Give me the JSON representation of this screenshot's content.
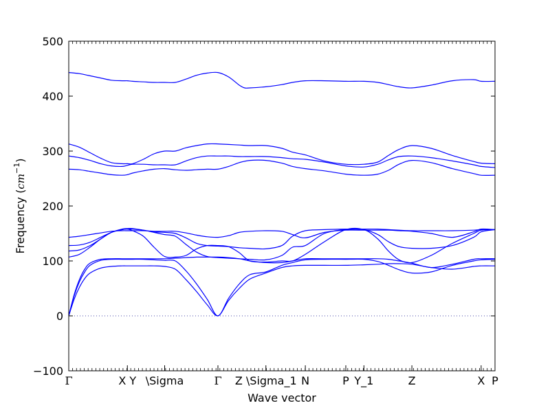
{
  "chart_data": {
    "type": "line",
    "title": "",
    "xlabel": "Wave vector",
    "ylabel": "Frequency",
    "ylabel_unit": "cm",
    "ylabel_exp": "−1",
    "ylim": [
      -100,
      500
    ],
    "yticks": [
      -100,
      0,
      100,
      200,
      300,
      400,
      500
    ],
    "xlim": [
      0,
      4.0
    ],
    "grid": false,
    "legend": "none",
    "color": "#0000ff",
    "zero_line_color": "#4444aa",
    "xticks": [
      {
        "x": 0.0,
        "label": "Γ"
      },
      {
        "x": 0.55,
        "label": "X Y"
      },
      {
        "x": 0.9,
        "label": "\\Sigma"
      },
      {
        "x": 1.4,
        "label": "Γ"
      },
      {
        "x": 1.85,
        "label": "Z \\Sigma_1"
      },
      {
        "x": 2.22,
        "label": "N"
      },
      {
        "x": 2.6,
        "label": "P"
      },
      {
        "x": 2.77,
        "label": "Y_1"
      },
      {
        "x": 3.22,
        "label": "Z"
      },
      {
        "x": 3.87,
        "label": "X"
      },
      {
        "x": 4.0,
        "label": "P"
      }
    ],
    "series": [
      {
        "x": [
          0,
          0.1,
          0.2,
          0.3,
          0.4,
          0.5,
          0.55,
          0.6,
          0.7,
          0.8,
          0.9,
          1.0,
          1.1,
          1.2,
          1.3,
          1.4,
          1.5,
          1.6,
          1.65,
          1.7,
          1.85,
          2.0,
          2.1,
          2.22,
          2.4,
          2.6,
          2.77,
          2.9,
          3.0,
          3.1,
          3.22,
          3.4,
          3.6,
          3.8,
          3.87,
          4.0
        ],
        "y": [
          443,
          441,
          437,
          433,
          429,
          428,
          428,
          427,
          426,
          425,
          425,
          425,
          431,
          438,
          442,
          443,
          435,
          420,
          415,
          415,
          417,
          421,
          425,
          428,
          428,
          427,
          427,
          425,
          421,
          417,
          415,
          420,
          428,
          430,
          427,
          427
        ]
      },
      {
        "x": [
          0,
          0.1,
          0.2,
          0.3,
          0.4,
          0.5,
          0.55,
          0.6,
          0.7,
          0.8,
          0.9,
          1.0,
          1.1,
          1.2,
          1.3,
          1.4,
          1.5,
          1.6,
          1.7,
          1.85,
          2.0,
          2.1,
          2.22,
          2.4,
          2.6,
          2.77,
          2.9,
          3.0,
          3.1,
          3.22,
          3.4,
          3.6,
          3.8,
          3.87,
          4.0
        ],
        "y": [
          313,
          307,
          297,
          287,
          279,
          277,
          277,
          277,
          285,
          295,
          300,
          300,
          306,
          310,
          313,
          313,
          312,
          311,
          310,
          310,
          305,
          298,
          293,
          282,
          276,
          276,
          280,
          292,
          303,
          310,
          305,
          292,
          281,
          278,
          277
        ]
      },
      {
        "x": [
          0,
          0.1,
          0.2,
          0.3,
          0.4,
          0.5,
          0.55,
          0.6,
          0.7,
          0.8,
          0.9,
          1.0,
          1.1,
          1.2,
          1.3,
          1.4,
          1.5,
          1.6,
          1.7,
          1.85,
          2.0,
          2.1,
          2.22,
          2.4,
          2.6,
          2.77,
          2.9,
          3.0,
          3.1,
          3.22,
          3.4,
          3.6,
          3.8,
          3.87,
          4.0
        ],
        "y": [
          291,
          288,
          283,
          277,
          273,
          272,
          274,
          276,
          276,
          275,
          275,
          275,
          282,
          288,
          291,
          291,
          291,
          290,
          290,
          290,
          288,
          286,
          285,
          280,
          273,
          271,
          276,
          284,
          290,
          291,
          288,
          282,
          275,
          272,
          270
        ]
      },
      {
        "x": [
          0,
          0.1,
          0.2,
          0.3,
          0.4,
          0.5,
          0.55,
          0.6,
          0.7,
          0.8,
          0.9,
          1.0,
          1.1,
          1.2,
          1.3,
          1.4,
          1.5,
          1.6,
          1.7,
          1.85,
          2.0,
          2.1,
          2.22,
          2.4,
          2.6,
          2.77,
          2.9,
          3.0,
          3.1,
          3.22,
          3.4,
          3.6,
          3.8,
          3.87,
          4.0
        ],
        "y": [
          267,
          266,
          263,
          260,
          257,
          256,
          257,
          260,
          264,
          267,
          268,
          266,
          265,
          266,
          267,
          267,
          272,
          279,
          283,
          283,
          278,
          272,
          268,
          264,
          258,
          256,
          258,
          265,
          276,
          283,
          279,
          268,
          259,
          256,
          256
        ]
      },
      {
        "x": [
          0,
          0.1,
          0.2,
          0.3,
          0.4,
          0.5,
          0.55,
          0.6,
          0.7,
          0.8,
          0.9,
          1.0,
          1.1,
          1.2,
          1.3,
          1.4,
          1.5,
          1.6,
          1.7,
          1.85,
          2.0,
          2.1,
          2.22,
          2.4,
          2.6,
          2.77,
          2.9,
          3.0,
          3.1,
          3.22,
          3.4,
          3.6,
          3.8,
          3.87,
          4.0
        ],
        "y": [
          143,
          145,
          148,
          151,
          154,
          155,
          155,
          155,
          155,
          154,
          154,
          154,
          151,
          147,
          144,
          143,
          146,
          152,
          154,
          155,
          154,
          148,
          142,
          152,
          156,
          156,
          156,
          156,
          155,
          154,
          150,
          143,
          153,
          158,
          157
        ]
      },
      {
        "x": [
          0,
          0.1,
          0.2,
          0.3,
          0.4,
          0.5,
          0.55,
          0.6,
          0.7,
          0.8,
          0.9,
          1.0,
          1.1,
          1.2,
          1.3,
          1.4,
          1.5,
          1.6,
          1.7,
          1.85,
          2.0,
          2.1,
          2.22,
          2.4,
          2.6,
          2.77,
          2.9,
          3.0,
          3.1,
          3.22,
          3.4,
          3.6,
          3.8,
          3.87,
          4.0
        ],
        "y": [
          128,
          129,
          134,
          143,
          152,
          157,
          158,
          158,
          156,
          153,
          152,
          150,
          142,
          132,
          128,
          127,
          126,
          124,
          123,
          122,
          128,
          145,
          155,
          157,
          158,
          158,
          158,
          157,
          156,
          155,
          155,
          155,
          156,
          157,
          157
        ]
      },
      {
        "x": [
          0,
          0.1,
          0.2,
          0.3,
          0.4,
          0.5,
          0.55,
          0.6,
          0.7,
          0.8,
          0.9,
          1.0,
          1.1,
          1.2,
          1.3,
          1.4,
          1.5,
          1.6,
          1.7,
          1.85,
          2.0,
          2.1,
          2.22,
          2.4,
          2.6,
          2.77,
          2.9,
          3.0,
          3.1,
          3.22,
          3.4,
          3.6,
          3.8,
          3.87,
          4.0
        ],
        "y": [
          118,
          120,
          128,
          140,
          152,
          158,
          159,
          159,
          156,
          152,
          148,
          145,
          130,
          116,
          108,
          106,
          105,
          104,
          103,
          102,
          110,
          125,
          128,
          150,
          157,
          157,
          148,
          135,
          126,
          123,
          123,
          128,
          143,
          153,
          157
        ]
      },
      {
        "x": [
          0,
          0.1,
          0.2,
          0.3,
          0.4,
          0.5,
          0.55,
          0.6,
          0.7,
          0.8,
          0.9,
          1.0,
          1.1,
          1.2,
          1.3,
          1.4,
          1.5,
          1.6,
          1.7,
          1.85,
          2.0,
          2.1,
          2.22,
          2.4,
          2.6,
          2.77,
          2.9,
          3.0,
          3.1,
          3.22,
          3.4,
          3.6,
          3.8,
          3.87,
          4.0
        ],
        "y": [
          107,
          112,
          125,
          140,
          152,
          157,
          158,
          155,
          145,
          125,
          108,
          107,
          110,
          122,
          128,
          128,
          126,
          115,
          100,
          98,
          100,
          100,
          112,
          135,
          157,
          157,
          140,
          118,
          102,
          97,
          110,
          132,
          150,
          156,
          157
        ]
      },
      {
        "x": [
          0,
          0.05,
          0.1,
          0.15,
          0.2,
          0.3,
          0.4,
          0.5,
          0.55,
          0.6,
          0.7,
          0.8,
          0.9,
          1.0,
          1.1,
          1.2,
          1.3,
          1.4,
          1.5,
          1.6,
          1.7,
          1.85,
          2.0,
          2.1,
          2.22,
          2.4,
          2.6,
          2.77,
          2.9,
          3.0,
          3.1,
          3.22,
          3.4,
          3.6,
          3.8,
          3.87,
          4.0
        ],
        "y": [
          0,
          38,
          66,
          85,
          96,
          103,
          104,
          104,
          104,
          104,
          104,
          104,
          104,
          105,
          106,
          107,
          107,
          107,
          106,
          104,
          100,
          97,
          97,
          100,
          104,
          104,
          104,
          104,
          104,
          103,
          100,
          96,
          88,
          94,
          103,
          104,
          104
        ]
      },
      {
        "x": [
          0,
          0.05,
          0.1,
          0.15,
          0.2,
          0.3,
          0.4,
          0.5,
          0.55,
          0.6,
          0.7,
          0.8,
          0.9,
          1.0,
          1.1,
          1.2,
          1.3,
          1.4,
          1.5,
          1.6,
          1.7,
          1.85,
          2.0,
          2.1,
          2.22,
          2.4,
          2.6,
          2.77,
          2.9,
          3.0,
          3.1,
          3.22,
          3.4,
          3.6,
          3.8,
          3.87,
          4.0
        ],
        "y": [
          0,
          36,
          62,
          80,
          92,
          101,
          103,
          103,
          103,
          103,
          103,
          102,
          101,
          100,
          82,
          58,
          30,
          0,
          32,
          58,
          75,
          80,
          92,
          97,
          102,
          103,
          103,
          103,
          99,
          92,
          84,
          78,
          80,
          92,
          100,
          102,
          103
        ]
      },
      {
        "x": [
          0,
          0.05,
          0.1,
          0.15,
          0.2,
          0.3,
          0.4,
          0.5,
          0.55,
          0.6,
          0.7,
          0.8,
          0.9,
          1.0,
          1.1,
          1.2,
          1.3,
          1.4,
          1.5,
          1.6,
          1.7,
          1.85,
          2.0,
          2.1,
          2.22,
          2.4,
          2.6,
          2.77,
          2.9,
          3.0,
          3.1,
          3.22,
          3.4,
          3.6,
          3.8,
          3.87,
          4.0
        ],
        "y": [
          0,
          30,
          52,
          68,
          78,
          87,
          90,
          91,
          91,
          91,
          91,
          91,
          90,
          85,
          66,
          44,
          20,
          0,
          28,
          50,
          67,
          78,
          88,
          91,
          92,
          92,
          92,
          93,
          94,
          95,
          95,
          94,
          88,
          85,
          90,
          91,
          91
        ]
      }
    ]
  }
}
